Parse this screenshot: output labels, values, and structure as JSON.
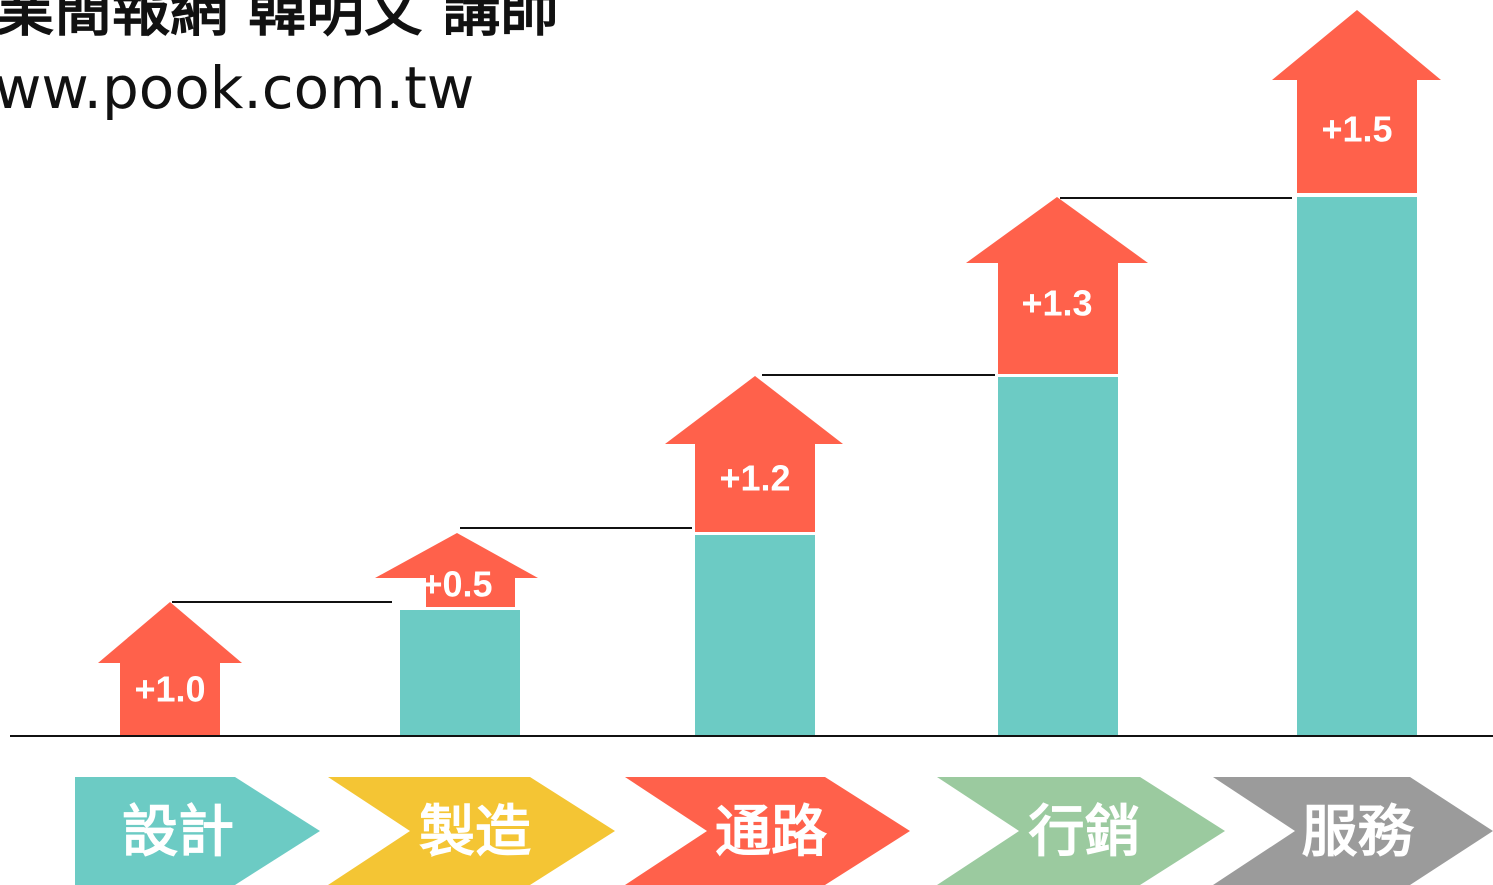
{
  "header": {
    "line1": "業簡報網 韓明文 講師",
    "line2": "ww.pook.com.tw"
  },
  "steps": [
    {
      "label": "設計",
      "gain": "+1.0"
    },
    {
      "label": "製造",
      "gain": "+0.5"
    },
    {
      "label": "通路",
      "gain": "+1.2"
    },
    {
      "label": "行銷",
      "gain": "+1.3"
    },
    {
      "label": "服務",
      "gain": "+1.5"
    }
  ]
}
